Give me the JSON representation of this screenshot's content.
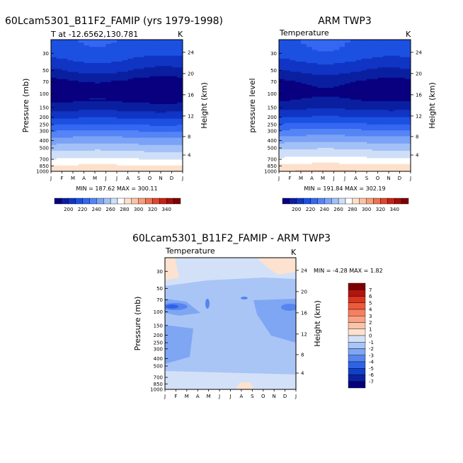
{
  "panels": [
    {
      "title": "60Lcam5301_B11F2_FAMIP (yrs 1979-1998)",
      "subtitle": "T at -12.6562,130.781",
      "unit": "K",
      "ylabel": "Pressure (mb)",
      "ylabel_right": "Height (km)",
      "stats": "MIN = 187.62 MAX = 300.11"
    },
    {
      "title": "ARM TWP3",
      "subtitle": "Temperature",
      "unit": "K",
      "ylabel": "pressure level",
      "ylabel_right": "Height (km)",
      "stats": "MIN = 191.84 MAX = 302.19"
    },
    {
      "title": "60Lcam5301_B11F2_FAMIP - ARM TWP3",
      "subtitle": "Temperature",
      "unit": "K",
      "ylabel": "Pressure (mb)",
      "ylabel_right": "Height (km)",
      "stats": "MIN =   -4.28 MAX =    1.82"
    }
  ],
  "colorbar_temp": {
    "labels": [
      "200",
      "220",
      "240",
      "260",
      "280",
      "300",
      "320",
      "340"
    ],
    "colors": [
      "#08007f",
      "#0a1fa0",
      "#1035c4",
      "#1c50e0",
      "#3467f2",
      "#5584f5",
      "#7aa2f6",
      "#a3c1f7",
      "#cfdff8",
      "#ffffff",
      "#fde0cc",
      "#fbc2a6",
      "#f59f7d",
      "#ec7253",
      "#df4531",
      "#c52316",
      "#a30d0d",
      "#7d0000"
    ]
  },
  "colorbar_diff": {
    "labels": [
      "7",
      "6",
      "5",
      "4",
      "3",
      "2",
      "1",
      "0",
      "-1",
      "-2",
      "-3",
      "-4",
      "-5",
      "-6",
      "-7"
    ],
    "colors": [
      "#7d0000",
      "#b3140f",
      "#d9351f",
      "#ec5a3c",
      "#f57f5f",
      "#f9a283",
      "#fbc3a8",
      "#fde2cf",
      "#d3e1f8",
      "#a9c5f6",
      "#7ea6f3",
      "#5585ef",
      "#2f63e6",
      "#1140c8",
      "#0a22a2",
      "#05007a"
    ]
  },
  "chart_data": [
    {
      "type": "heatmap",
      "title": "60Lcam5301_B11F2_FAMIP (yrs 1979-1998)",
      "subtitle": "T at -12.6562,130.781",
      "x_ticks": [
        "J",
        "F",
        "M",
        "A",
        "M",
        "J",
        "J",
        "A",
        "S",
        "O",
        "N",
        "D",
        "J"
      ],
      "y_ticks_pressure_mb": [
        30,
        50,
        70,
        100,
        150,
        200,
        250,
        300,
        400,
        500,
        700,
        850,
        1000
      ],
      "y_ticks_height_km": [
        4,
        8,
        12,
        16,
        20,
        24
      ],
      "ylabel": "Pressure (mb)",
      "ylabel_right": "Height (km)",
      "units": "K",
      "min": 187.62,
      "max": 300.11,
      "z_range": [
        200,
        340
      ],
      "levels_mb": [
        30,
        50,
        70,
        100,
        150,
        200,
        250,
        300,
        400,
        500,
        700,
        850,
        1000
      ],
      "profile": [
        {
          "p": 30,
          "T": 225
        },
        {
          "p": 50,
          "T": 210
        },
        {
          "p": 70,
          "T": 197
        },
        {
          "p": 100,
          "T": 192
        },
        {
          "p": 150,
          "T": 205
        },
        {
          "p": 200,
          "T": 218
        },
        {
          "p": 250,
          "T": 230
        },
        {
          "p": 300,
          "T": 240
        },
        {
          "p": 400,
          "T": 255
        },
        {
          "p": 500,
          "T": 266
        },
        {
          "p": 700,
          "T": 281
        },
        {
          "p": 850,
          "T": 291
        },
        {
          "p": 1000,
          "T": 299
        }
      ]
    },
    {
      "type": "heatmap",
      "title": "ARM TWP3",
      "subtitle": "Temperature",
      "x_ticks": [
        "J",
        "F",
        "M",
        "A",
        "M",
        "J",
        "J",
        "A",
        "S",
        "O",
        "N",
        "D",
        "J"
      ],
      "y_ticks_pressure_mb": [
        30,
        50,
        70,
        100,
        150,
        200,
        250,
        300,
        400,
        500,
        700,
        850,
        1000
      ],
      "y_ticks_height_km": [
        4,
        8,
        12,
        16,
        20,
        24
      ],
      "ylabel": "pressure level",
      "ylabel_right": "Height (km)",
      "units": "K",
      "min": 191.84,
      "max": 302.19,
      "z_range": [
        200,
        340
      ],
      "profile": [
        {
          "p": 30,
          "T": 226
        },
        {
          "p": 50,
          "T": 211
        },
        {
          "p": 70,
          "T": 199
        },
        {
          "p": 100,
          "T": 194
        },
        {
          "p": 150,
          "T": 207
        },
        {
          "p": 200,
          "T": 220
        },
        {
          "p": 250,
          "T": 232
        },
        {
          "p": 300,
          "T": 242
        },
        {
          "p": 400,
          "T": 257
        },
        {
          "p": 500,
          "T": 268
        },
        {
          "p": 700,
          "T": 283
        },
        {
          "p": 850,
          "T": 293
        },
        {
          "p": 1000,
          "T": 301
        }
      ]
    },
    {
      "type": "heatmap",
      "title": "60Lcam5301_B11F2_FAMIP - ARM TWP3",
      "subtitle": "Temperature",
      "x_ticks": [
        "J",
        "F",
        "M",
        "A",
        "M",
        "J",
        "J",
        "A",
        "S",
        "O",
        "N",
        "D",
        "J"
      ],
      "y_ticks_pressure_mb": [
        30,
        50,
        70,
        100,
        150,
        200,
        250,
        300,
        400,
        500,
        700,
        850,
        1000
      ],
      "y_ticks_height_km": [
        4,
        8,
        12,
        16,
        20,
        24
      ],
      "ylabel": "Pressure (mb)",
      "ylabel_right": "Height (km)",
      "units": "K",
      "min": -4.28,
      "max": 1.82,
      "z_range": [
        -7,
        7
      ],
      "dominant_level": -2
    }
  ]
}
